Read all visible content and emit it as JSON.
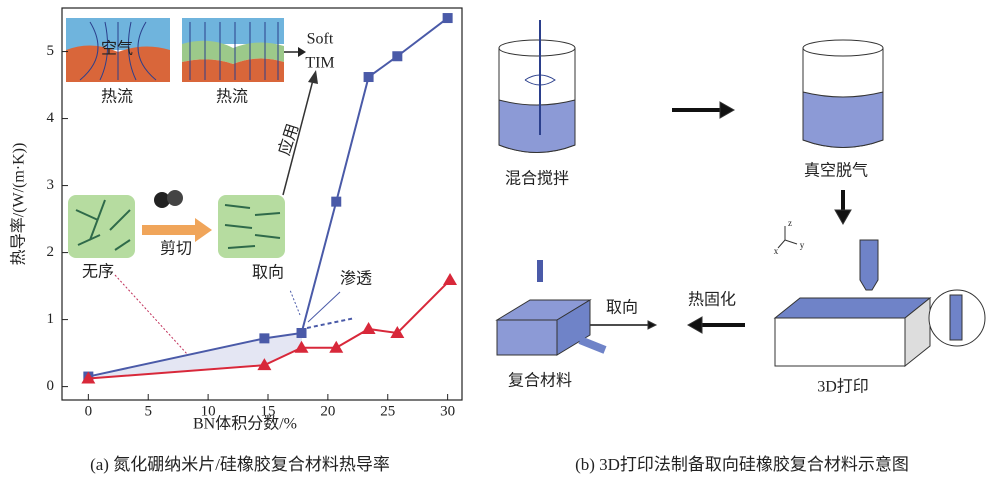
{
  "chart_data": {
    "type": "line",
    "xlabel": "BN体积分数/%",
    "ylabel": "热导率/(W/(m·K))",
    "xlim": [
      -2.2,
      31.2
    ],
    "ylim": [
      -0.2,
      5.65
    ],
    "xticks": [
      0,
      5,
      10,
      15,
      20,
      25,
      30
    ],
    "yticks": [
      0,
      1,
      2,
      3,
      4,
      5
    ],
    "series": [
      {
        "color": "#4a5aa8",
        "marker": "square",
        "x": [
          0,
          14.7,
          17.8,
          20.7,
          23.4,
          25.8,
          30
        ],
        "values": [
          0.15,
          0.72,
          0.8,
          2.76,
          4.62,
          4.93,
          5.5
        ]
      },
      {
        "color": "#d8283a",
        "marker": "triangle",
        "x": [
          0,
          14.7,
          17.8,
          20.7,
          23.4,
          25.8,
          30.2
        ],
        "values": [
          0.12,
          0.32,
          0.58,
          0.58,
          0.86,
          0.8,
          1.59
        ]
      }
    ],
    "annotations": [
      "空气",
      "热流",
      "热流",
      "Soft",
      "TIM",
      "应用",
      "无序",
      "剪切",
      "取向",
      "渗透"
    ],
    "caption": "(a) 氮化硼纳米片/硅橡胶复合材料热导率"
  },
  "diagram": {
    "steps": [
      "混合搅拌",
      "真空脱气",
      "3D打印",
      "热固化",
      "取向",
      "复合材料"
    ],
    "axes": [
      "z",
      "y",
      "x"
    ],
    "caption": "(b) 3D打印法制备取向硅橡胶复合材料示意图"
  }
}
